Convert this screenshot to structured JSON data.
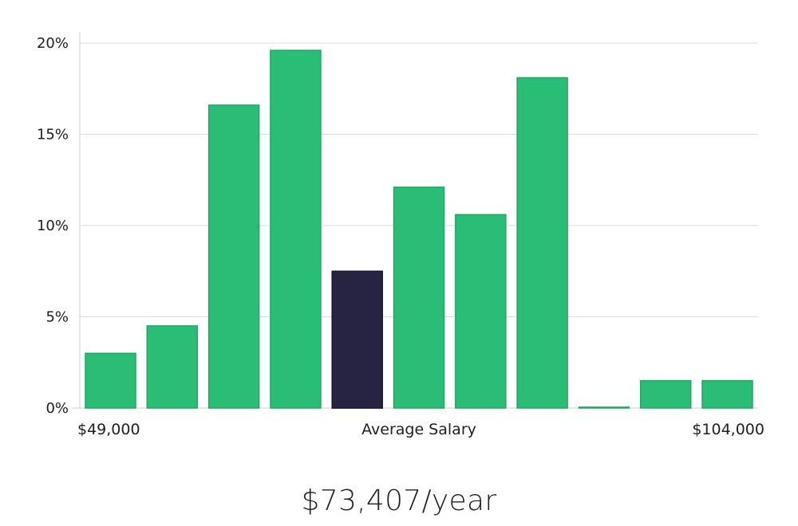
{
  "chart_data": {
    "type": "bar",
    "title": "",
    "xlabel": "Average Salary",
    "ylabel": "",
    "ylim": [
      0,
      20
    ],
    "y_ticks": [
      "0%",
      "5%",
      "10%",
      "15%",
      "20%"
    ],
    "y_tick_values": [
      0,
      5,
      10,
      15,
      20
    ],
    "grid": true,
    "values": [
      3.0,
      4.5,
      16.6,
      19.6,
      7.5,
      12.1,
      10.6,
      18.1,
      0.05,
      1.5,
      1.5
    ],
    "highlight_index": 4,
    "colors": {
      "bar": "#2abd75",
      "bar_stroke": "#22a866",
      "highlight": "#272343",
      "highlight_stroke": "#1a172e"
    },
    "x_range_labels": {
      "min": "$49,000",
      "center": "Average Salary",
      "max": "$104,000"
    }
  },
  "headline": {
    "average_salary": "$73,407/year"
  }
}
